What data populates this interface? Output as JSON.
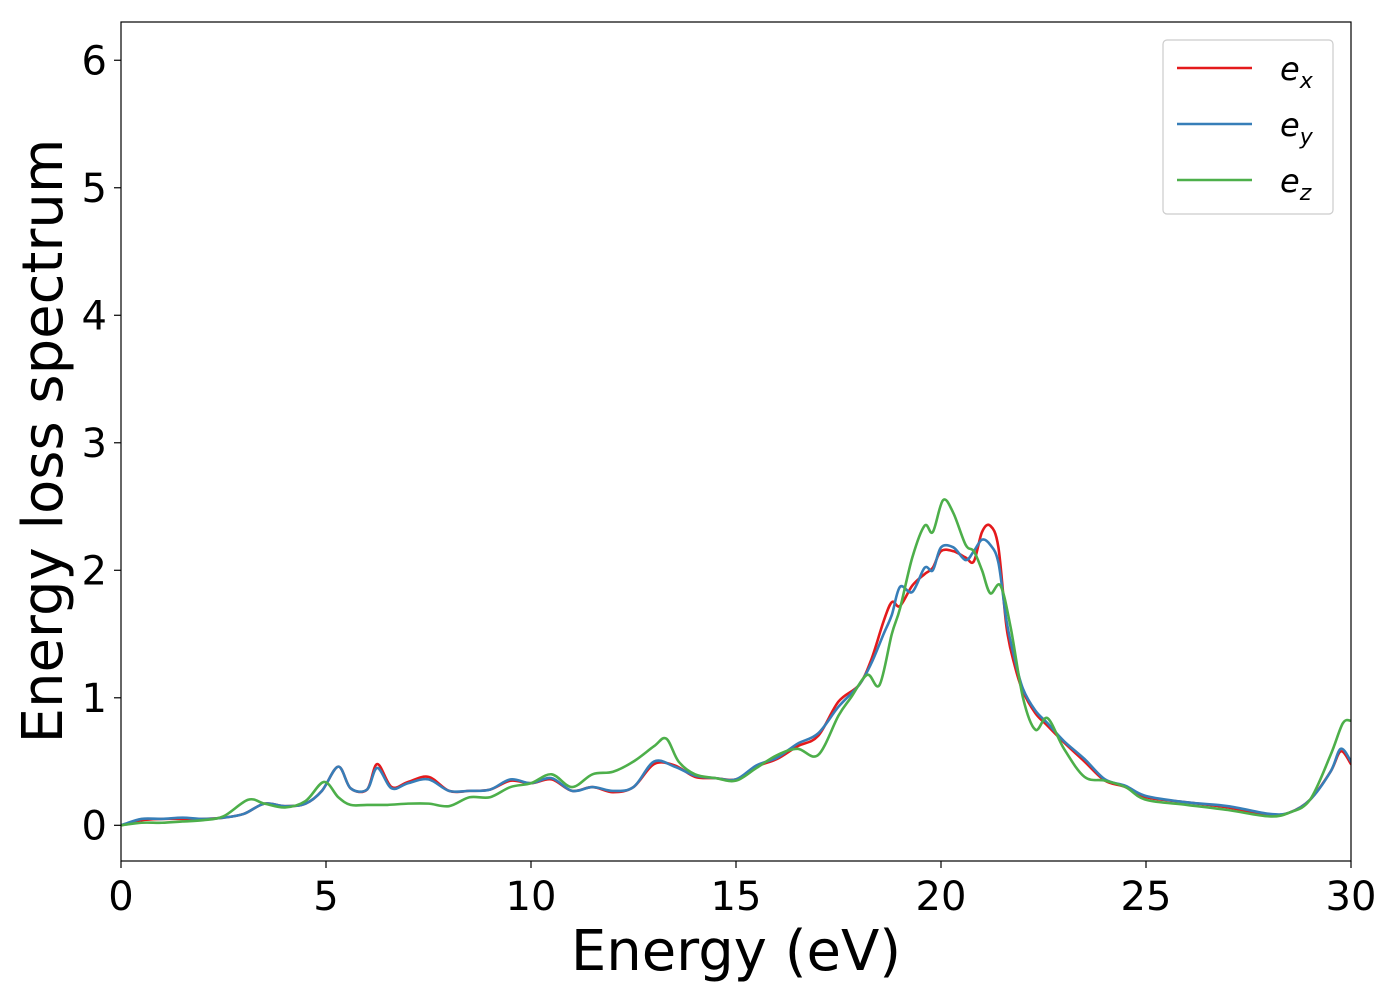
{
  "chart_data": {
    "type": "line",
    "title": "",
    "xlabel": "Energy (eV)",
    "ylabel": "Energy loss spectrum",
    "xlim": [
      0,
      30
    ],
    "ylim": [
      -0.28,
      6.3
    ],
    "xticks": [
      0,
      5,
      10,
      15,
      20,
      25,
      30
    ],
    "yticks": [
      0,
      1,
      2,
      3,
      4,
      5,
      6
    ],
    "grid": false,
    "legend_position": "top-right",
    "series": [
      {
        "name": "e_x",
        "base": "e",
        "sub": "x",
        "color": "#e41a1c",
        "x": [
          0,
          0.5,
          1,
          1.5,
          2,
          2.5,
          3,
          3.5,
          4,
          4.5,
          4.9,
          5.3,
          5.6,
          6.0,
          6.25,
          6.6,
          7.0,
          7.5,
          8.0,
          8.5,
          9.0,
          9.5,
          10.0,
          10.5,
          11.0,
          11.5,
          12.0,
          12.5,
          13.0,
          13.5,
          14.0,
          14.5,
          15.0,
          15.5,
          16.0,
          16.5,
          17.0,
          17.5,
          18.0,
          18.3,
          18.6,
          18.8,
          19.0,
          19.3,
          19.6,
          19.8,
          20.0,
          20.3,
          20.6,
          20.8,
          21.0,
          21.2,
          21.4,
          21.6,
          21.8,
          22.0,
          22.3,
          22.6,
          23.0,
          23.5,
          24.0,
          24.5,
          25.0,
          26.0,
          27.0,
          28.0,
          28.5,
          29.0,
          29.5,
          29.75,
          30.0
        ],
        "values": [
          0.0,
          0.04,
          0.05,
          0.05,
          0.05,
          0.06,
          0.09,
          0.17,
          0.15,
          0.17,
          0.27,
          0.46,
          0.29,
          0.28,
          0.48,
          0.3,
          0.34,
          0.38,
          0.27,
          0.27,
          0.28,
          0.35,
          0.33,
          0.36,
          0.27,
          0.3,
          0.26,
          0.3,
          0.48,
          0.47,
          0.38,
          0.37,
          0.36,
          0.46,
          0.52,
          0.62,
          0.7,
          0.97,
          1.1,
          1.3,
          1.6,
          1.75,
          1.72,
          1.88,
          1.97,
          2.02,
          2.15,
          2.15,
          2.1,
          2.07,
          2.3,
          2.35,
          2.18,
          1.55,
          1.25,
          1.05,
          0.88,
          0.78,
          0.65,
          0.5,
          0.35,
          0.3,
          0.22,
          0.18,
          0.14,
          0.08,
          0.1,
          0.2,
          0.42,
          0.58,
          0.48
        ]
      },
      {
        "name": "e_y",
        "base": "e",
        "sub": "y",
        "color": "#377eb8",
        "x": [
          0,
          0.5,
          1,
          1.5,
          2,
          2.5,
          3,
          3.5,
          4,
          4.5,
          4.9,
          5.3,
          5.6,
          6.0,
          6.25,
          6.6,
          7.0,
          7.5,
          8.0,
          8.5,
          9.0,
          9.5,
          10.0,
          10.5,
          11.0,
          11.5,
          12.0,
          12.5,
          13.0,
          13.5,
          14.0,
          14.5,
          15.0,
          15.5,
          16.0,
          16.5,
          17.0,
          17.5,
          18.0,
          18.3,
          18.6,
          18.8,
          19.0,
          19.3,
          19.6,
          19.8,
          20.0,
          20.3,
          20.6,
          20.8,
          21.0,
          21.2,
          21.4,
          21.6,
          21.8,
          22.0,
          22.3,
          22.6,
          23.0,
          23.5,
          24.0,
          24.5,
          25.0,
          26.0,
          27.0,
          28.0,
          28.5,
          29.0,
          29.5,
          29.75,
          30.0
        ],
        "values": [
          0.0,
          0.05,
          0.05,
          0.06,
          0.05,
          0.06,
          0.09,
          0.17,
          0.15,
          0.17,
          0.27,
          0.46,
          0.29,
          0.28,
          0.45,
          0.29,
          0.33,
          0.36,
          0.27,
          0.27,
          0.28,
          0.36,
          0.33,
          0.37,
          0.27,
          0.3,
          0.27,
          0.3,
          0.5,
          0.46,
          0.39,
          0.37,
          0.36,
          0.47,
          0.53,
          0.64,
          0.72,
          0.93,
          1.1,
          1.27,
          1.5,
          1.65,
          1.87,
          1.83,
          2.02,
          2.0,
          2.18,
          2.18,
          2.08,
          2.15,
          2.24,
          2.2,
          2.06,
          1.6,
          1.3,
          1.07,
          0.9,
          0.8,
          0.66,
          0.52,
          0.36,
          0.31,
          0.23,
          0.18,
          0.15,
          0.09,
          0.1,
          0.2,
          0.42,
          0.6,
          0.5
        ]
      },
      {
        "name": "e_z",
        "base": "e",
        "sub": "z",
        "color": "#4daf4a",
        "x": [
          0,
          0.5,
          1,
          1.5,
          2,
          2.5,
          3.1,
          3.5,
          4.0,
          4.5,
          4.95,
          5.3,
          5.6,
          6.0,
          6.5,
          7.0,
          7.5,
          8.0,
          8.5,
          9.0,
          9.5,
          10.0,
          10.5,
          11.0,
          11.5,
          12.0,
          12.5,
          13.0,
          13.3,
          13.6,
          14.0,
          14.5,
          15.0,
          15.5,
          16.0,
          16.5,
          17.0,
          17.5,
          17.8,
          18.2,
          18.5,
          18.8,
          19.0,
          19.3,
          19.6,
          19.8,
          20.05,
          20.3,
          20.6,
          20.8,
          21.0,
          21.2,
          21.45,
          21.7,
          22.0,
          22.3,
          22.6,
          23.0,
          23.5,
          24.0,
          24.5,
          25.0,
          26.0,
          27.0,
          28.0,
          28.5,
          29.0,
          29.5,
          29.8,
          30.0
        ],
        "values": [
          0.0,
          0.02,
          0.02,
          0.03,
          0.04,
          0.07,
          0.2,
          0.17,
          0.14,
          0.19,
          0.34,
          0.22,
          0.16,
          0.16,
          0.16,
          0.17,
          0.17,
          0.15,
          0.22,
          0.22,
          0.3,
          0.33,
          0.4,
          0.3,
          0.4,
          0.42,
          0.5,
          0.62,
          0.68,
          0.5,
          0.4,
          0.37,
          0.35,
          0.45,
          0.55,
          0.6,
          0.55,
          0.86,
          1.0,
          1.18,
          1.1,
          1.5,
          1.7,
          2.1,
          2.35,
          2.3,
          2.55,
          2.45,
          2.2,
          2.15,
          2.0,
          1.82,
          1.88,
          1.55,
          1.0,
          0.75,
          0.84,
          0.6,
          0.38,
          0.35,
          0.3,
          0.2,
          0.16,
          0.12,
          0.07,
          0.1,
          0.2,
          0.55,
          0.8,
          0.82
        ]
      }
    ]
  }
}
